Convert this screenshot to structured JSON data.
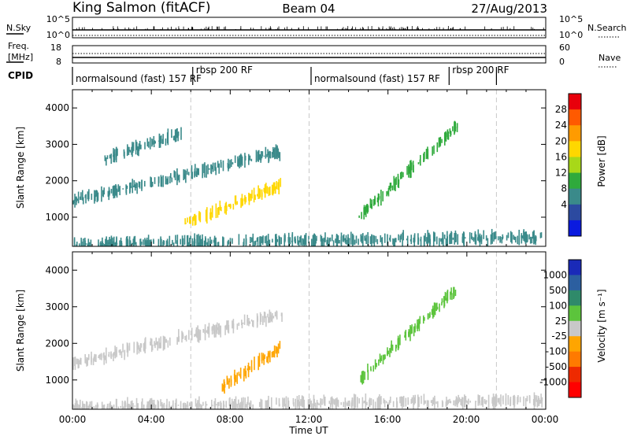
{
  "header": {
    "station": "King Salmon (fitACF)",
    "beam": "Beam 04",
    "date": "27/Aug/2013"
  },
  "strips": {
    "nsky_label": "N.Sky",
    "nsky_ticks": [
      "10^5",
      "10^0"
    ],
    "nsearch_label": "N.Search",
    "nsearch_ticks": [
      "10^5",
      "10^0"
    ],
    "freq_label_1": "Freq.",
    "freq_label_2": "[MHz]",
    "freq_ticks": [
      "18",
      "8"
    ],
    "nave_label": "Nave",
    "nave_ticks": [
      "60",
      "0"
    ],
    "cpid_label": "CPID",
    "cpid_segments": [
      {
        "text": "normalsound (fast) 157 RF",
        "start_hour": 0,
        "end_hour": 6.1
      },
      {
        "text": "rbsp 200 RF",
        "start_hour": 6.1,
        "end_hour": 12.1
      },
      {
        "text": "normalsound (fast) 157 RF",
        "start_hour": 12.1,
        "end_hour": 19.1
      },
      {
        "text": "rbsp 200 RF",
        "start_hour": 19.1,
        "end_hour": 21.5
      }
    ]
  },
  "axes": {
    "ylabel": "Slant Range [km]",
    "xlabel": "Time UT",
    "xticks": [
      "00:00",
      "04:00",
      "08:00",
      "12:00",
      "16:00",
      "20:00",
      "00:00"
    ]
  },
  "colorbars": {
    "power": {
      "label": "Power [dB]",
      "ticks": [
        "28",
        "24",
        "20",
        "16",
        "12",
        "8",
        "4"
      ],
      "colors": [
        "#e8000b",
        "#ff5a00",
        "#ff9b00",
        "#ffd700",
        "#a8d818",
        "#2faa3c",
        "#3a8a8a",
        "#2c4aa0",
        "#0a1adf"
      ]
    },
    "velocity": {
      "label": "Velocity [m s⁻¹]",
      "ticks": [
        "1000",
        "500",
        "100",
        "25",
        "-25",
        "-100",
        "-500",
        "-1000"
      ],
      "colors": [
        "#1a2ab8",
        "#2c5fa0",
        "#2f8a6a",
        "#5cc43c",
        "#c8c8c8",
        "#ffa500",
        "#ff7a00",
        "#ee2a00",
        "#ff0000"
      ]
    }
  },
  "chart_data": [
    {
      "type": "heatmap",
      "title": "Power",
      "xlabel": "Time UT",
      "ylabel": "Slant Range [km]",
      "xlim_hours": [
        0,
        24
      ],
      "ylim": [
        200,
        4500
      ],
      "colorbar_label": "Power [dB]",
      "colorbar_range": [
        0,
        30
      ],
      "regions": [
        {
          "t0": 0.0,
          "t1": 10.6,
          "r_start": 1450,
          "r_end": 2800,
          "power_db": 8
        },
        {
          "t0": 5.5,
          "t1": 10.6,
          "r_start": 800,
          "r_end": 1900,
          "power_db": 20
        },
        {
          "t0": 1.5,
          "t1": 5.5,
          "r_start": 2600,
          "r_end": 3300,
          "power_db": 6
        },
        {
          "t0": 0.0,
          "t1": 24.0,
          "r_start": 250,
          "r_end": 450,
          "power_db": 6
        },
        {
          "t0": 14.5,
          "t1": 19.5,
          "r_start": 1000,
          "r_end": 3500,
          "power_db": 10
        }
      ]
    },
    {
      "type": "heatmap",
      "title": "Velocity",
      "xlabel": "Time UT",
      "ylabel": "Slant Range [km]",
      "xlim_hours": [
        0,
        24
      ],
      "ylim": [
        200,
        4500
      ],
      "colorbar_label": "Velocity [m s⁻¹]",
      "colorbar_range": [
        -1000,
        1000
      ],
      "regions": [
        {
          "t0": 0.0,
          "t1": 10.6,
          "r_start": 1450,
          "r_end": 2800,
          "velocity": 0
        },
        {
          "t0": 7.5,
          "t1": 10.6,
          "r_start": 800,
          "r_end": 1900,
          "velocity": -200
        },
        {
          "t0": 14.5,
          "t1": 19.5,
          "r_start": 1000,
          "r_end": 3500,
          "velocity": 300
        },
        {
          "t0": 0.0,
          "t1": 24.0,
          "r_start": 250,
          "r_end": 450,
          "velocity": 50
        }
      ]
    }
  ]
}
